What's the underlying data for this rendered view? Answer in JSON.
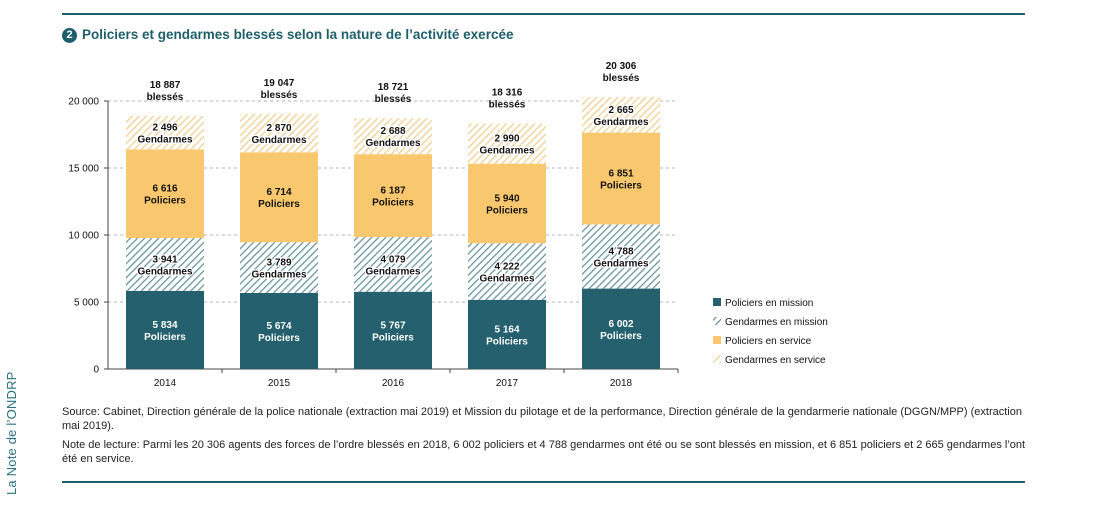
{
  "page": {
    "title_number": "2",
    "title": "Policiers et gendarmes blessés selon la nature de l’activité exercée",
    "side_label": "La Note de l’ONDRP",
    "source": "Source: Cabinet, Direction générale de la police nationale (extraction mai 2019) et Mission du pilotage et de la performance, Direction générale de la gendarmerie nationale (DGGN/MPP) (extraction mai 2019).",
    "note": "Note de lecture: Parmi les 20 306 agents des forces de l’ordre blessés en 2018, 6 002 policiers et 4 788 gendarmes ont été ou se sont blessés en mission, et 6 851 policiers et 2 665 gendarmes l’ont été en service."
  },
  "colors": {
    "brand": "#1f5f6b",
    "policiers_mission": "#24606d",
    "gendarmes_mission_stripe": "#5f8e9a",
    "policiers_service": "#f9c86e",
    "gendarmes_service_stripe": "#f3cc88",
    "grid": "#b5b5b5"
  },
  "chart_data": {
    "type": "bar",
    "stacked": true,
    "title": "Policiers et gendarmes blessés selon la nature de l’activité exercée",
    "categories": [
      "2014",
      "2015",
      "2016",
      "2017",
      "2018"
    ],
    "series": [
      {
        "name": "Policiers en mission",
        "segment_label": "Policiers",
        "values": [
          5834,
          5674,
          5767,
          5164,
          6002
        ],
        "value_labels": [
          "5 834",
          "5 674",
          "5 767",
          "5 164",
          "6 002"
        ]
      },
      {
        "name": "Gendarmes en mission",
        "segment_label": "Gendarmes",
        "values": [
          3941,
          3789,
          4079,
          4222,
          4788
        ],
        "value_labels": [
          "3 941",
          "3 789",
          "4 079",
          "4 222",
          "4 788"
        ]
      },
      {
        "name": "Policiers en service",
        "segment_label": "Policiers",
        "values": [
          6616,
          6714,
          6187,
          5940,
          6851
        ],
        "value_labels": [
          "6 616",
          "6 714",
          "6 187",
          "5 940",
          "6 851"
        ]
      },
      {
        "name": "Gendarmes en service",
        "segment_label": "Gendarmes",
        "values": [
          2496,
          2870,
          2688,
          2990,
          2665
        ],
        "value_labels": [
          "2 496",
          "2 870",
          "2 688",
          "2 990",
          "2 665"
        ]
      }
    ],
    "totals": [
      "18 887",
      "19 047",
      "18 721",
      "18 316",
      "20 306"
    ],
    "totals_suffix": "blessés",
    "ylim": [
      0,
      20000
    ],
    "yticks": [
      0,
      5000,
      10000,
      15000,
      20000
    ],
    "ytick_labels": [
      "0",
      "5 000",
      "10 000",
      "15 000",
      "20 000"
    ],
    "grid": "dashed horizontal",
    "legend_position": "right"
  }
}
